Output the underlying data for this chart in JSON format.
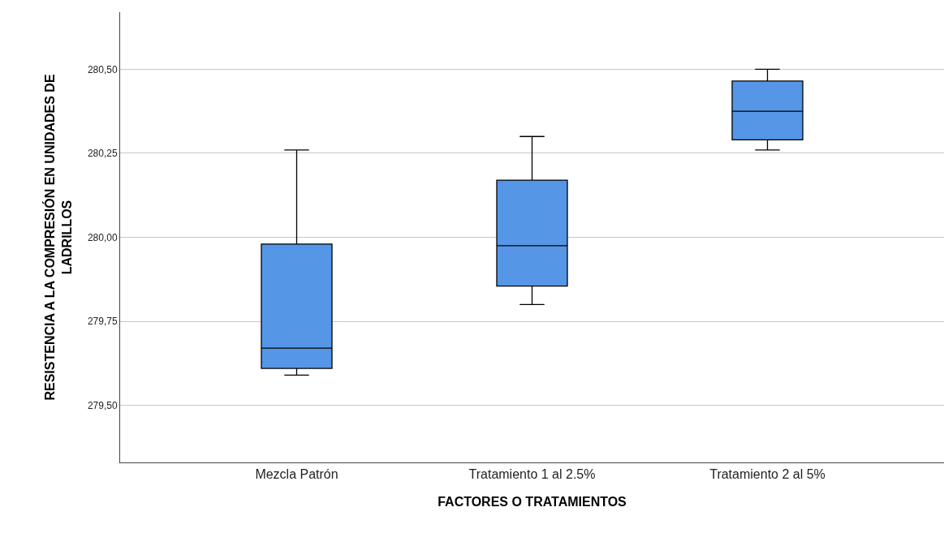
{
  "chart_data": {
    "type": "box",
    "xlabel": "FACTORES O TRATAMIENTOS",
    "ylabel": "RESISTENCIA A LA COMPRESIÓN EN UNIDADES DE LADRILLOS",
    "categories": [
      "Mezcla Patrón",
      "Tratamiento 1 al 2.5%",
      "Tratamiento 2 al 5%"
    ],
    "boxes": [
      {
        "low": 279.59,
        "q1": 279.61,
        "median": 279.67,
        "q3": 279.98,
        "high": 280.26
      },
      {
        "low": 279.8,
        "q1": 279.855,
        "median": 279.975,
        "q3": 280.17,
        "high": 280.3
      },
      {
        "low": 280.26,
        "q1": 280.29,
        "median": 280.375,
        "q3": 280.465,
        "high": 280.5
      }
    ],
    "color": "#5596e6",
    "ylim": [
      279.33,
      280.67
    ],
    "yticks": [
      {
        "value": 279.5,
        "label": "279,50"
      },
      {
        "value": 279.75,
        "label": "279,75"
      },
      {
        "value": 280.0,
        "label": "280,00"
      },
      {
        "value": 280.25,
        "label": "280,25"
      },
      {
        "value": 280.5,
        "label": "280,50"
      }
    ],
    "grid": "y",
    "legend": false
  }
}
